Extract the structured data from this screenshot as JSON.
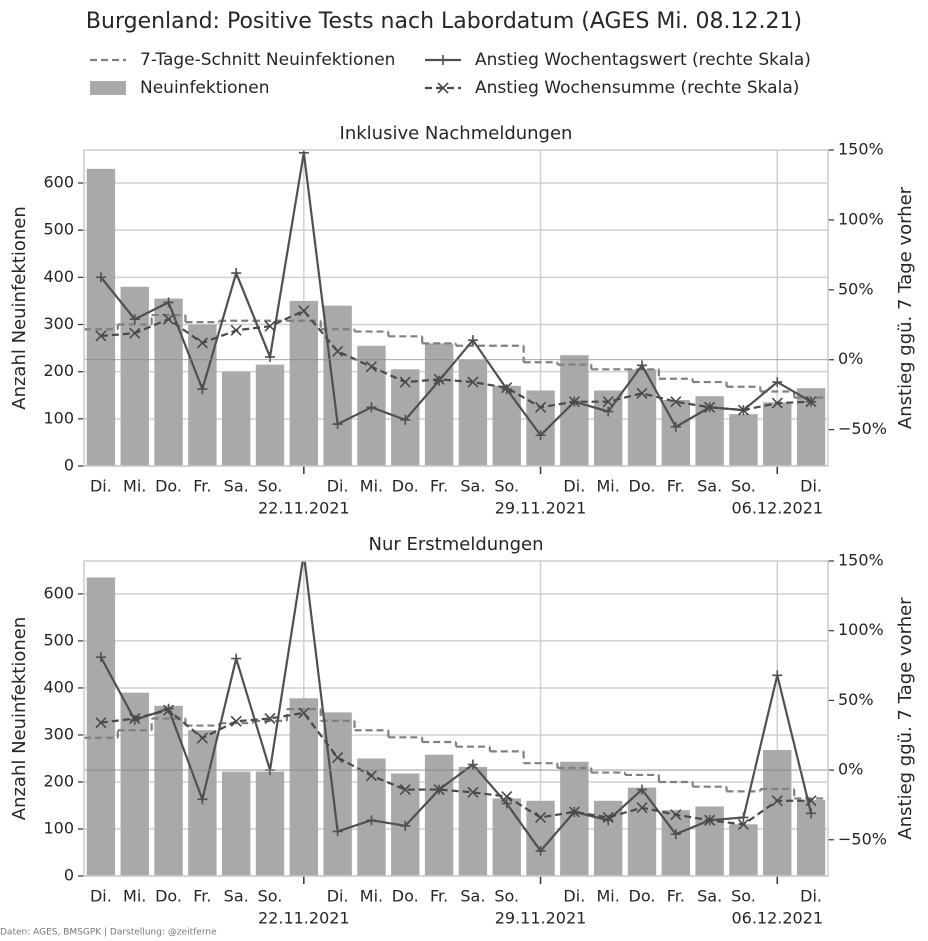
{
  "title": "Burgenland: Positive Tests nach Labordatum (AGES Mi. 08.12.21)",
  "source": "Daten: AGES, BMSGPK | Darstellung: @zeitferne",
  "chart_data": [
    {
      "type": "bar",
      "title": "Inklusive Nachmeldungen",
      "ylabel": "Anzahl Neuinfektionen",
      "y2label": "Anstieg ggü. 7 Tage vorher",
      "categories": [
        "Di.",
        "Mi.",
        "Do.",
        "Fr.",
        "Sa.",
        "So.",
        "22.11.2021",
        "Di.",
        "Mi.",
        "Do.",
        "Fr.",
        "Sa.",
        "So.",
        "29.11.2021",
        "Di.",
        "Mi.",
        "Do.",
        "Fr.",
        "Sa.",
        "So.",
        "06.12.2021",
        "Di."
      ],
      "ylim": [
        0,
        670
      ],
      "yticks": [
        0,
        100,
        200,
        300,
        400,
        500,
        600
      ],
      "y2lim": [
        -76,
        150
      ],
      "y2ticks": [
        {
          "value": -50,
          "label": "−50%"
        },
        {
          "value": 0,
          "label": "0%"
        },
        {
          "value": 50,
          "label": "50%"
        },
        {
          "value": 100,
          "label": "100%"
        },
        {
          "value": 150,
          "label": "150%"
        }
      ],
      "grid": true,
      "series": [
        {
          "name": "7-Tage-Schnitt Neuinfektionen",
          "type": "step",
          "color": "#808080",
          "values": [
            290,
            300,
            320,
            305,
            308,
            308,
            308,
            290,
            285,
            275,
            260,
            255,
            255,
            220,
            215,
            205,
            205,
            185,
            178,
            168,
            158,
            145
          ]
        },
        {
          "name": "Neuinfektionen",
          "type": "bar",
          "color": "#a9a9a9",
          "values": [
            630,
            380,
            355,
            300,
            200,
            215,
            350,
            340,
            255,
            205,
            260,
            225,
            170,
            160,
            235,
            160,
            205,
            140,
            148,
            110,
            135,
            165
          ]
        },
        {
          "name": "Anstieg Wochentagswert (rechte Skala)",
          "type": "line",
          "axis": "y2",
          "marker": "plus",
          "color": "#505050",
          "values": [
            59,
            29,
            41,
            -21,
            62,
            2,
            148,
            -46,
            -34,
            -43,
            -15,
            14,
            -21,
            -54,
            -30,
            -37,
            -4,
            -48,
            -34,
            -36,
            -16,
            -30
          ]
        },
        {
          "name": "Anstieg Wochensumme (rechte Skala)",
          "type": "line",
          "axis": "y2",
          "marker": "x",
          "dashed": true,
          "color": "#4a4a4a",
          "values": [
            17,
            19,
            29,
            12,
            21,
            24,
            35,
            6,
            -5,
            -16,
            -14,
            -16,
            -20,
            -34,
            -30,
            -30,
            -24,
            -30,
            -34,
            -36,
            -31,
            -30
          ]
        }
      ]
    },
    {
      "type": "bar",
      "title": "Nur Erstmeldungen",
      "ylabel": "Anzahl Neuinfektionen",
      "y2label": "Anstieg ggü. 7 Tage vorher",
      "categories": [
        "Di.",
        "Mi.",
        "Do.",
        "Fr.",
        "Sa.",
        "So.",
        "22.11.2021",
        "Di.",
        "Mi.",
        "Do.",
        "Fr.",
        "Sa.",
        "So.",
        "29.11.2021",
        "Di.",
        "Mi.",
        "Do.",
        "Fr.",
        "Sa.",
        "So.",
        "06.12.2021",
        "Di."
      ],
      "ylim": [
        0,
        670
      ],
      "yticks": [
        0,
        100,
        200,
        300,
        400,
        500,
        600
      ],
      "y2lim": [
        -76,
        150
      ],
      "y2ticks": [
        {
          "value": -50,
          "label": "−50%"
        },
        {
          "value": 0,
          "label": "0%"
        },
        {
          "value": 50,
          "label": "50%"
        },
        {
          "value": 100,
          "label": "100%"
        },
        {
          "value": 150,
          "label": "150%"
        }
      ],
      "grid": true,
      "series": [
        {
          "name": "7-Tage-Schnitt Neuinfektionen",
          "type": "step",
          "color": "#808080",
          "values": [
            294,
            310,
            335,
            320,
            325,
            330,
            355,
            330,
            310,
            295,
            285,
            275,
            265,
            240,
            230,
            220,
            215,
            200,
            190,
            180,
            185,
            165
          ]
        },
        {
          "name": "Neuinfektionen",
          "type": "bar",
          "color": "#a9a9a9",
          "values": [
            635,
            390,
            362,
            310,
            222,
            222,
            378,
            348,
            250,
            218,
            258,
            232,
            165,
            160,
            243,
            160,
            188,
            140,
            148,
            110,
            268,
            162
          ]
        },
        {
          "name": "Anstieg Wochentagswert (rechte Skala)",
          "type": "line",
          "axis": "y2",
          "marker": "plus",
          "color": "#505050",
          "values": [
            81,
            36,
            44,
            -21,
            80,
            0,
            155,
            -44,
            -36,
            -40,
            -14,
            4,
            -24,
            -58,
            -30,
            -36,
            -14,
            -46,
            -36,
            -34,
            68,
            -31
          ]
        },
        {
          "name": "Anstieg Wochensumme (rechte Skala)",
          "type": "line",
          "axis": "y2",
          "marker": "x",
          "dashed": true,
          "color": "#4a4a4a",
          "values": [
            34,
            37,
            43,
            23,
            35,
            37,
            41,
            9,
            -4,
            -14,
            -14,
            -16,
            -19,
            -34,
            -30,
            -34,
            -27,
            -32,
            -36,
            -39,
            -22,
            -22
          ]
        }
      ]
    }
  ]
}
